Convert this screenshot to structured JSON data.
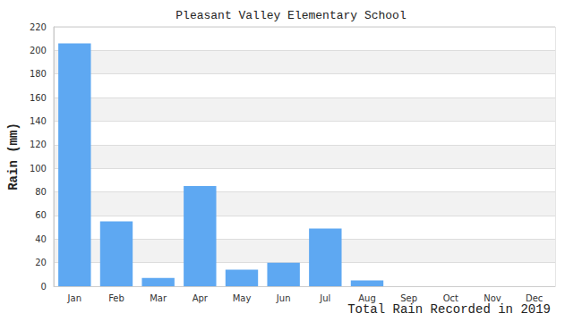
{
  "chart_data": {
    "type": "bar",
    "title": "Pleasant Valley Elementary School",
    "xlabel": "Total Rain Recorded in 2019",
    "ylabel": "Rain (mm)",
    "categories": [
      "Jan",
      "Feb",
      "Mar",
      "Apr",
      "May",
      "Jun",
      "Jul",
      "Aug",
      "Sep",
      "Oct",
      "Nov",
      "Dec"
    ],
    "values": [
      206,
      55,
      7,
      85,
      14,
      20,
      49,
      5,
      0,
      0,
      0,
      0
    ],
    "color": "#5ea8f2",
    "ylim": [
      0,
      220
    ],
    "yticks": [
      0,
      20,
      40,
      60,
      80,
      100,
      120,
      140,
      160,
      180,
      200,
      220
    ],
    "grid": true
  }
}
